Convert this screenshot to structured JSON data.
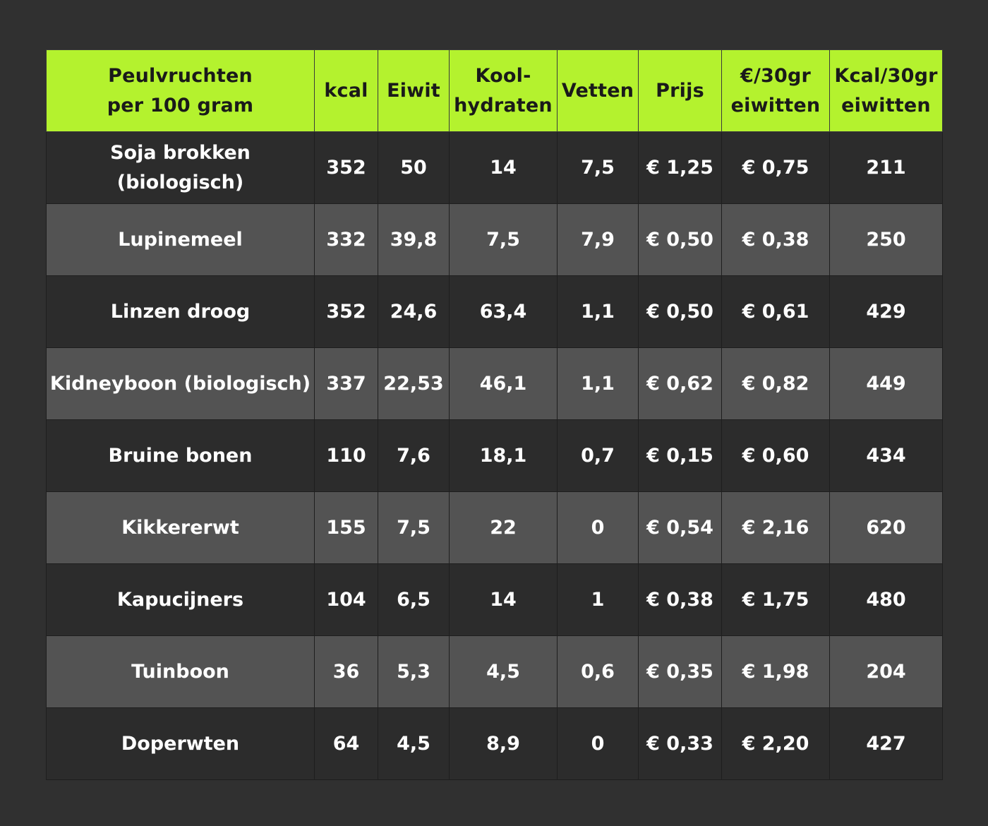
{
  "table": {
    "headers": [
      "Peulvruchten\nper 100 gram",
      "kcal",
      "Eiwit",
      "Kool-\nhydraten",
      "Vetten",
      "Prijs",
      "€/30gr\neiwitten",
      "Kcal/30gr\neiwitten"
    ],
    "rows": [
      [
        "Soja brokken\n(biologisch)",
        "352",
        "50",
        "14",
        "7,5",
        "€ 1,25",
        "€ 0,75",
        "211"
      ],
      [
        "Lupinemeel",
        "332",
        "39,8",
        "7,5",
        "7,9",
        "€ 0,50",
        "€ 0,38",
        "250"
      ],
      [
        "Linzen droog",
        "352",
        "24,6",
        "63,4",
        "1,1",
        "€ 0,50",
        "€ 0,61",
        "429"
      ],
      [
        "Kidneyboon (biologisch)",
        "337",
        "22,53",
        "46,1",
        "1,1",
        "€ 0,62",
        "€ 0,82",
        "449"
      ],
      [
        "Bruine bonen",
        "110",
        "7,6",
        "18,1",
        "0,7",
        "€ 0,15",
        "€ 0,60",
        "434"
      ],
      [
        "Kikkererwt",
        "155",
        "7,5",
        "22",
        "0",
        "€ 0,54",
        "€ 2,16",
        "620"
      ],
      [
        "Kapucijners",
        "104",
        "6,5",
        "14",
        "1",
        "€ 0,38",
        "€ 1,75",
        "480"
      ],
      [
        "Tuinboon",
        "36",
        "5,3",
        "4,5",
        "0,6",
        "€ 0,35",
        "€ 1,98",
        "204"
      ],
      [
        "Doperwten",
        "64",
        "4,5",
        "8,9",
        "0",
        "€ 0,33",
        "€ 2,20",
        "427"
      ]
    ]
  },
  "colors": {
    "background": "#303030",
    "header_bg": "#b4f22e",
    "row_dark": "#2c2c2c",
    "row_light": "#535353",
    "text_light": "#ffffff",
    "text_dark": "#1a1a1a"
  }
}
